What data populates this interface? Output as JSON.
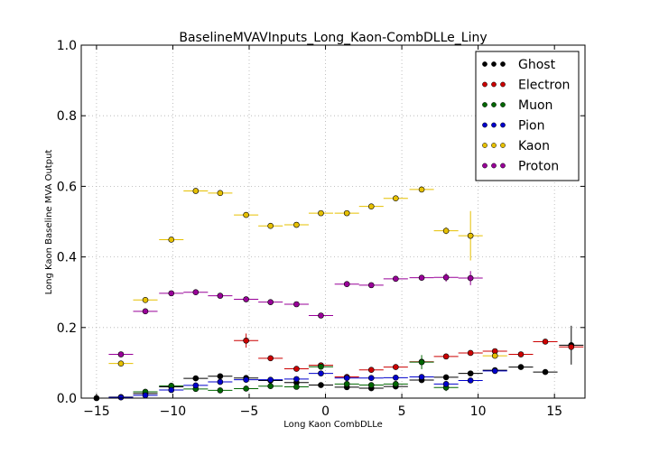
{
  "chart_data": {
    "type": "scatter",
    "title": "BaselineMVAVInputs_Long_Kaon-CombDLLe_Liny",
    "xlabel": "Long Kaon CombDLLe",
    "ylabel": "Long Kaon Baseline MVA Output",
    "xlim": [
      -16,
      17
    ],
    "ylim": [
      0,
      1.0
    ],
    "x_ticks": [
      "−15",
      "−10",
      "−5",
      "0",
      "5",
      "10",
      "15"
    ],
    "x_tick_values": [
      -15,
      -10,
      -5,
      0,
      5,
      10,
      15
    ],
    "y_ticks": [
      "0.0",
      "0.2",
      "0.4",
      "0.6",
      "0.8",
      "1.0"
    ],
    "y_tick_values": [
      0,
      0.2,
      0.4,
      0.6,
      0.8,
      1.0
    ],
    "grid": true,
    "legend_position": "top-right",
    "series": [
      {
        "name": "Ghost",
        "color": "#000000",
        "points": [
          {
            "x": -15.0,
            "y": 0.0,
            "xerr": 0.8,
            "yerr": 0.0
          },
          {
            "x": -13.4,
            "y": 0.003,
            "xerr": 0.8,
            "yerr": 0.0
          },
          {
            "x": -11.8,
            "y": 0.013,
            "xerr": 0.8,
            "yerr": 0.0
          },
          {
            "x": -10.1,
            "y": 0.032,
            "xerr": 0.8,
            "yerr": 0.0
          },
          {
            "x": -8.5,
            "y": 0.056,
            "xerr": 0.8,
            "yerr": 0.0
          },
          {
            "x": -6.9,
            "y": 0.062,
            "xerr": 0.8,
            "yerr": 0.0
          },
          {
            "x": -5.2,
            "y": 0.057,
            "xerr": 0.8,
            "yerr": 0.0
          },
          {
            "x": -3.6,
            "y": 0.05,
            "xerr": 0.8,
            "yerr": 0.0
          },
          {
            "x": -1.9,
            "y": 0.044,
            "xerr": 0.8,
            "yerr": 0.0
          },
          {
            "x": -0.3,
            "y": 0.037,
            "xerr": 0.8,
            "yerr": 0.0
          },
          {
            "x": 1.4,
            "y": 0.031,
            "xerr": 0.8,
            "yerr": 0.0
          },
          {
            "x": 3.0,
            "y": 0.028,
            "xerr": 0.8,
            "yerr": 0.0
          },
          {
            "x": 4.6,
            "y": 0.033,
            "xerr": 0.8,
            "yerr": 0.0
          },
          {
            "x": 6.3,
            "y": 0.051,
            "xerr": 0.8,
            "yerr": 0.0
          },
          {
            "x": 7.9,
            "y": 0.059,
            "xerr": 0.8,
            "yerr": 0.0
          },
          {
            "x": 9.5,
            "y": 0.07,
            "xerr": 0.8,
            "yerr": 0.0
          },
          {
            "x": 11.1,
            "y": 0.079,
            "xerr": 0.8,
            "yerr": 0.0
          },
          {
            "x": 12.8,
            "y": 0.088,
            "xerr": 0.8,
            "yerr": 0.0
          },
          {
            "x": 14.4,
            "y": 0.074,
            "xerr": 0.8,
            "yerr": 0.0
          },
          {
            "x": 16.1,
            "y": 0.15,
            "xerr": 0.8,
            "yerr": 0.055
          }
        ]
      },
      {
        "name": "Electron",
        "color": "#cc0000",
        "points": [
          {
            "x": -5.2,
            "y": 0.163,
            "xerr": 0.8,
            "yerr": 0.02
          },
          {
            "x": -3.6,
            "y": 0.113,
            "xerr": 0.8,
            "yerr": 0.005
          },
          {
            "x": -1.9,
            "y": 0.083,
            "xerr": 0.8,
            "yerr": 0.004
          },
          {
            "x": -0.3,
            "y": 0.093,
            "xerr": 0.8,
            "yerr": 0.004
          },
          {
            "x": 1.4,
            "y": 0.06,
            "xerr": 0.8,
            "yerr": 0.003
          },
          {
            "x": 3.0,
            "y": 0.08,
            "xerr": 0.8,
            "yerr": 0.003
          },
          {
            "x": 4.6,
            "y": 0.088,
            "xerr": 0.8,
            "yerr": 0.003
          },
          {
            "x": 6.3,
            "y": 0.103,
            "xerr": 0.8,
            "yerr": 0.004
          },
          {
            "x": 7.9,
            "y": 0.118,
            "xerr": 0.8,
            "yerr": 0.004
          },
          {
            "x": 9.5,
            "y": 0.128,
            "xerr": 0.8,
            "yerr": 0.005
          },
          {
            "x": 11.1,
            "y": 0.133,
            "xerr": 0.8,
            "yerr": 0.005
          },
          {
            "x": 12.8,
            "y": 0.124,
            "xerr": 0.8,
            "yerr": 0.005
          },
          {
            "x": 14.4,
            "y": 0.16,
            "xerr": 0.8,
            "yerr": 0.006
          },
          {
            "x": 16.1,
            "y": 0.145,
            "xerr": 0.8,
            "yerr": 0.008
          }
        ]
      },
      {
        "name": "Muon",
        "color": "#006600",
        "points": [
          {
            "x": -11.8,
            "y": 0.018,
            "xerr": 0.8,
            "yerr": 0.002
          },
          {
            "x": -10.1,
            "y": 0.035,
            "xerr": 0.8,
            "yerr": 0.002
          },
          {
            "x": -8.5,
            "y": 0.026,
            "xerr": 0.8,
            "yerr": 0.002
          },
          {
            "x": -6.9,
            "y": 0.022,
            "xerr": 0.8,
            "yerr": 0.002
          },
          {
            "x": -5.2,
            "y": 0.027,
            "xerr": 0.8,
            "yerr": 0.002
          },
          {
            "x": -3.6,
            "y": 0.034,
            "xerr": 0.8,
            "yerr": 0.002
          },
          {
            "x": -1.9,
            "y": 0.032,
            "xerr": 0.8,
            "yerr": 0.002
          },
          {
            "x": -0.3,
            "y": 0.089,
            "xerr": 0.8,
            "yerr": 0.005
          },
          {
            "x": 1.4,
            "y": 0.04,
            "xerr": 0.8,
            "yerr": 0.003
          },
          {
            "x": 3.0,
            "y": 0.037,
            "xerr": 0.8,
            "yerr": 0.003
          },
          {
            "x": 4.6,
            "y": 0.04,
            "xerr": 0.8,
            "yerr": 0.003
          },
          {
            "x": 6.3,
            "y": 0.102,
            "xerr": 0.8,
            "yerr": 0.02
          },
          {
            "x": 7.9,
            "y": 0.03,
            "xerr": 0.8,
            "yerr": 0.01
          }
        ]
      },
      {
        "name": "Pion",
        "color": "#0000cc",
        "points": [
          {
            "x": -13.4,
            "y": 0.002,
            "xerr": 0.8,
            "yerr": 0.0
          },
          {
            "x": -11.8,
            "y": 0.008,
            "xerr": 0.8,
            "yerr": 0.0
          },
          {
            "x": -10.1,
            "y": 0.023,
            "xerr": 0.8,
            "yerr": 0.0
          },
          {
            "x": -8.5,
            "y": 0.036,
            "xerr": 0.8,
            "yerr": 0.0
          },
          {
            "x": -6.9,
            "y": 0.046,
            "xerr": 0.8,
            "yerr": 0.0
          },
          {
            "x": -5.2,
            "y": 0.052,
            "xerr": 0.8,
            "yerr": 0.0
          },
          {
            "x": -3.6,
            "y": 0.052,
            "xerr": 0.8,
            "yerr": 0.0
          },
          {
            "x": -1.9,
            "y": 0.054,
            "xerr": 0.8,
            "yerr": 0.0
          },
          {
            "x": -0.3,
            "y": 0.07,
            "xerr": 0.8,
            "yerr": 0.0
          },
          {
            "x": 1.4,
            "y": 0.057,
            "xerr": 0.8,
            "yerr": 0.0
          },
          {
            "x": 3.0,
            "y": 0.057,
            "xerr": 0.8,
            "yerr": 0.0
          },
          {
            "x": 4.6,
            "y": 0.058,
            "xerr": 0.8,
            "yerr": 0.0
          },
          {
            "x": 6.3,
            "y": 0.06,
            "xerr": 0.8,
            "yerr": 0.0
          },
          {
            "x": 7.9,
            "y": 0.04,
            "xerr": 0.8,
            "yerr": 0.003
          },
          {
            "x": 9.5,
            "y": 0.05,
            "xerr": 0.8,
            "yerr": 0.004
          },
          {
            "x": 11.1,
            "y": 0.077,
            "xerr": 0.8,
            "yerr": 0.005
          }
        ]
      },
      {
        "name": "Kaon",
        "color": "#e6c000",
        "points": [
          {
            "x": -13.4,
            "y": 0.098,
            "xerr": 0.8,
            "yerr": 0.005
          },
          {
            "x": -11.8,
            "y": 0.278,
            "xerr": 0.8,
            "yerr": 0.005
          },
          {
            "x": -10.1,
            "y": 0.449,
            "xerr": 0.8,
            "yerr": 0.004
          },
          {
            "x": -8.5,
            "y": 0.587,
            "xerr": 0.8,
            "yerr": 0.004
          },
          {
            "x": -6.9,
            "y": 0.581,
            "xerr": 0.8,
            "yerr": 0.004
          },
          {
            "x": -5.2,
            "y": 0.519,
            "xerr": 0.8,
            "yerr": 0.004
          },
          {
            "x": -3.6,
            "y": 0.488,
            "xerr": 0.8,
            "yerr": 0.003
          },
          {
            "x": -1.9,
            "y": 0.491,
            "xerr": 0.8,
            "yerr": 0.003
          },
          {
            "x": -0.3,
            "y": 0.524,
            "xerr": 0.8,
            "yerr": 0.003
          },
          {
            "x": 1.4,
            "y": 0.524,
            "xerr": 0.8,
            "yerr": 0.003
          },
          {
            "x": 3.0,
            "y": 0.543,
            "xerr": 0.8,
            "yerr": 0.003
          },
          {
            "x": 4.6,
            "y": 0.566,
            "xerr": 0.8,
            "yerr": 0.004
          },
          {
            "x": 6.3,
            "y": 0.591,
            "xerr": 0.8,
            "yerr": 0.005
          },
          {
            "x": 7.9,
            "y": 0.474,
            "xerr": 0.8,
            "yerr": 0.01
          },
          {
            "x": 9.5,
            "y": 0.46,
            "xerr": 0.8,
            "yerr": 0.07
          },
          {
            "x": 11.1,
            "y": 0.12,
            "xerr": 0.8,
            "yerr": 0.005
          }
        ]
      },
      {
        "name": "Proton",
        "color": "#990099",
        "points": [
          {
            "x": -13.4,
            "y": 0.124,
            "xerr": 0.8,
            "yerr": 0.006
          },
          {
            "x": -11.8,
            "y": 0.246,
            "xerr": 0.8,
            "yerr": 0.004
          },
          {
            "x": -10.1,
            "y": 0.297,
            "xerr": 0.8,
            "yerr": 0.004
          },
          {
            "x": -8.5,
            "y": 0.3,
            "xerr": 0.8,
            "yerr": 0.003
          },
          {
            "x": -6.9,
            "y": 0.29,
            "xerr": 0.8,
            "yerr": 0.003
          },
          {
            "x": -5.2,
            "y": 0.28,
            "xerr": 0.8,
            "yerr": 0.003
          },
          {
            "x": -3.6,
            "y": 0.272,
            "xerr": 0.8,
            "yerr": 0.003
          },
          {
            "x": -1.9,
            "y": 0.266,
            "xerr": 0.8,
            "yerr": 0.003
          },
          {
            "x": -0.3,
            "y": 0.234,
            "xerr": 0.8,
            "yerr": 0.003
          },
          {
            "x": 1.4,
            "y": 0.323,
            "xerr": 0.8,
            "yerr": 0.004
          },
          {
            "x": 3.0,
            "y": 0.32,
            "xerr": 0.8,
            "yerr": 0.004
          },
          {
            "x": 4.6,
            "y": 0.338,
            "xerr": 0.8,
            "yerr": 0.004
          },
          {
            "x": 6.3,
            "y": 0.341,
            "xerr": 0.8,
            "yerr": 0.005
          },
          {
            "x": 7.9,
            "y": 0.342,
            "xerr": 0.8,
            "yerr": 0.012
          },
          {
            "x": 9.5,
            "y": 0.34,
            "xerr": 0.8,
            "yerr": 0.02
          }
        ]
      }
    ]
  }
}
